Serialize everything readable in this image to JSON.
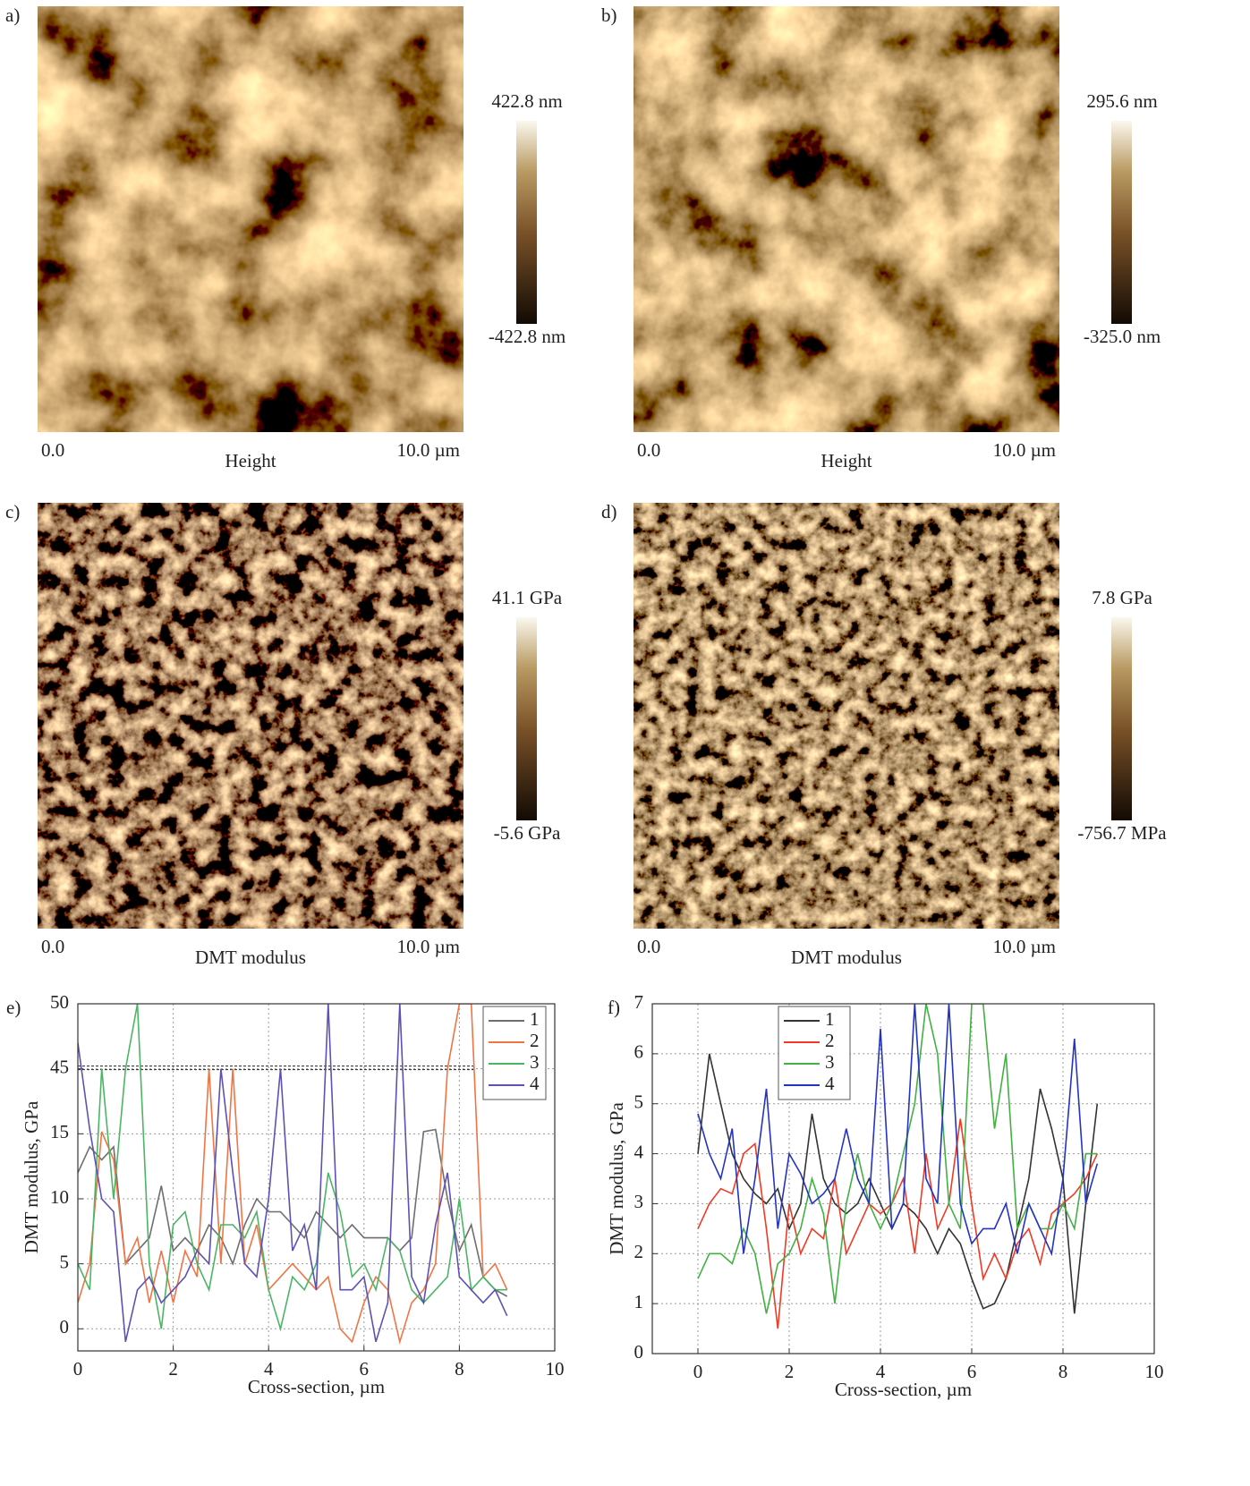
{
  "images": [
    {
      "label": "a)",
      "colorbar_max": "422.8 nm",
      "colorbar_min": "-422.8 nm",
      "x_start": "0.0",
      "x_end": "10.0 µm",
      "caption": "Height"
    },
    {
      "label": "b)",
      "colorbar_max": "295.6 nm",
      "colorbar_min": "-325.0 nm",
      "x_start": "0.0",
      "x_end": "10.0 µm",
      "caption": "Height"
    },
    {
      "label": "c)",
      "colorbar_max": "41.1 GPa",
      "colorbar_min": "-5.6 GPa",
      "x_start": "0.0",
      "x_end": "10.0 µm",
      "caption": "DMT modulus"
    },
    {
      "label": "d)",
      "colorbar_max": "7.8 GPa",
      "colorbar_min": "-756.7 MPa",
      "x_start": "0.0",
      "x_end": "10.0 µm",
      "caption": "DMT modulus"
    }
  ],
  "chart_data": [
    {
      "type": "line",
      "label": "e)",
      "x_label": "Cross-section, µm",
      "y_label": "DMT modulus, GPa",
      "xlim": [
        0,
        10
      ],
      "xticks": [
        0,
        2,
        4,
        6,
        8,
        10
      ],
      "ylim": [
        -1.7,
        50
      ],
      "yticks": [
        0,
        5,
        10,
        15,
        45,
        50
      ],
      "y_scale": "broken",
      "grid": true,
      "legend": "upper right",
      "x": [
        0,
        0.25,
        0.5,
        0.75,
        1,
        1.25,
        1.5,
        1.75,
        2,
        2.25,
        2.5,
        2.75,
        3,
        3.25,
        3.5,
        3.75,
        4,
        4.25,
        4.5,
        4.75,
        5,
        5.25,
        5.5,
        5.75,
        6,
        6.25,
        6.5,
        6.75,
        7,
        7.25,
        7.5,
        7.75,
        8,
        8.25,
        8.5,
        8.75,
        9
      ],
      "series": [
        {
          "name": "1",
          "color": "#6e6e6e",
          "values": [
            12,
            14,
            13,
            14,
            5,
            6,
            7,
            11,
            6,
            7,
            6,
            8,
            7,
            5,
            8,
            10,
            9,
            9,
            8,
            7,
            9,
            8,
            7,
            8,
            7,
            7,
            7,
            6,
            7,
            16,
            17,
            10,
            6,
            8,
            4,
            3,
            2.5
          ]
        },
        {
          "name": "2",
          "color": "#f07444",
          "values": [
            2,
            5,
            16,
            13,
            5,
            7,
            2,
            6,
            2,
            6,
            4,
            45,
            5,
            45,
            5,
            8,
            3,
            4,
            5,
            4,
            3,
            4,
            0,
            -1,
            2,
            4,
            3,
            -1,
            2,
            3,
            5,
            45,
            50,
            50,
            4,
            5,
            3
          ]
        },
        {
          "name": "3",
          "color": "#4cb564",
          "values": [
            5,
            3,
            45,
            10,
            45,
            50,
            5,
            0,
            8,
            9,
            5,
            3,
            8,
            8,
            7,
            9,
            3,
            0,
            4,
            3,
            5,
            12,
            9,
            4,
            5,
            3,
            7,
            6,
            3,
            2,
            3,
            4,
            10,
            3,
            4,
            3,
            3
          ]
        },
        {
          "name": "4",
          "color": "#5b52b4",
          "values": [
            47,
            17,
            10,
            9,
            -1,
            3,
            4,
            2,
            3,
            4,
            6,
            5,
            45,
            12,
            5,
            4,
            10,
            45,
            6,
            8,
            3,
            50,
            3,
            3,
            4,
            -1,
            2,
            50,
            4,
            2,
            8,
            12,
            4,
            3,
            2,
            3,
            1
          ]
        }
      ]
    },
    {
      "type": "line",
      "label": "f)",
      "x_label": "Cross-section, µm",
      "y_label": "DMT modulus, GPa",
      "xlim": [
        -1,
        10
      ],
      "xticks": [
        0,
        2,
        4,
        6,
        8,
        10
      ],
      "ylim": [
        0,
        7
      ],
      "yticks": [
        0,
        1,
        2,
        3,
        4,
        5,
        6,
        7
      ],
      "grid": true,
      "legend": "upper left",
      "x": [
        0,
        0.25,
        0.5,
        0.75,
        1,
        1.25,
        1.5,
        1.75,
        2,
        2.25,
        2.5,
        2.75,
        3,
        3.25,
        3.5,
        3.75,
        4,
        4.25,
        4.5,
        4.75,
        5,
        5.25,
        5.5,
        5.75,
        6,
        6.25,
        6.5,
        6.75,
        7,
        7.25,
        7.5,
        7.75,
        8,
        8.25,
        8.5,
        8.75
      ],
      "series": [
        {
          "name": "1",
          "color": "#333333",
          "values": [
            4,
            6,
            5,
            4,
            3.5,
            3.2,
            3,
            3.3,
            2.5,
            3,
            4.8,
            3.5,
            3,
            2.8,
            3,
            3.5,
            3,
            2.5,
            3,
            2.8,
            2.5,
            2,
            2.5,
            2.2,
            1.5,
            0.9,
            1,
            1.5,
            2.5,
            3.5,
            5.3,
            4.5,
            3.5,
            0.8,
            3,
            5
          ]
        },
        {
          "name": "2",
          "color": "#f03a24",
          "values": [
            2.5,
            3,
            3.3,
            3.2,
            4,
            4.2,
            2.5,
            0.5,
            3,
            2,
            2.5,
            2.3,
            3.5,
            2,
            2.5,
            3,
            2.8,
            3,
            3.5,
            2,
            4,
            2.5,
            3,
            4.7,
            3,
            1.5,
            2,
            1.5,
            2.2,
            2.5,
            1.8,
            2.8,
            3,
            3.2,
            3.5,
            4
          ]
        },
        {
          "name": "3",
          "color": "#42b042",
          "values": [
            1.5,
            2,
            2,
            1.8,
            2.5,
            2,
            0.8,
            1.8,
            2,
            2.5,
            3.5,
            2.8,
            1,
            3,
            4,
            3,
            2.5,
            3,
            4,
            5,
            7,
            6,
            3,
            2.5,
            7,
            7,
            4.5,
            6,
            2.5,
            3,
            2.5,
            2.5,
            3,
            2.5,
            4,
            4
          ]
        },
        {
          "name": "4",
          "color": "#2434c0",
          "values": [
            4.8,
            4,
            3.5,
            4.5,
            2,
            3.5,
            5.3,
            2.5,
            4,
            3.6,
            3,
            3.2,
            3.5,
            4.5,
            3.5,
            3,
            6.5,
            2.5,
            3,
            7,
            3.5,
            3,
            7,
            3,
            2.2,
            2.5,
            2.5,
            3,
            2,
            3,
            2.5,
            2,
            3.5,
            6.3,
            3,
            3.8
          ]
        }
      ]
    }
  ]
}
